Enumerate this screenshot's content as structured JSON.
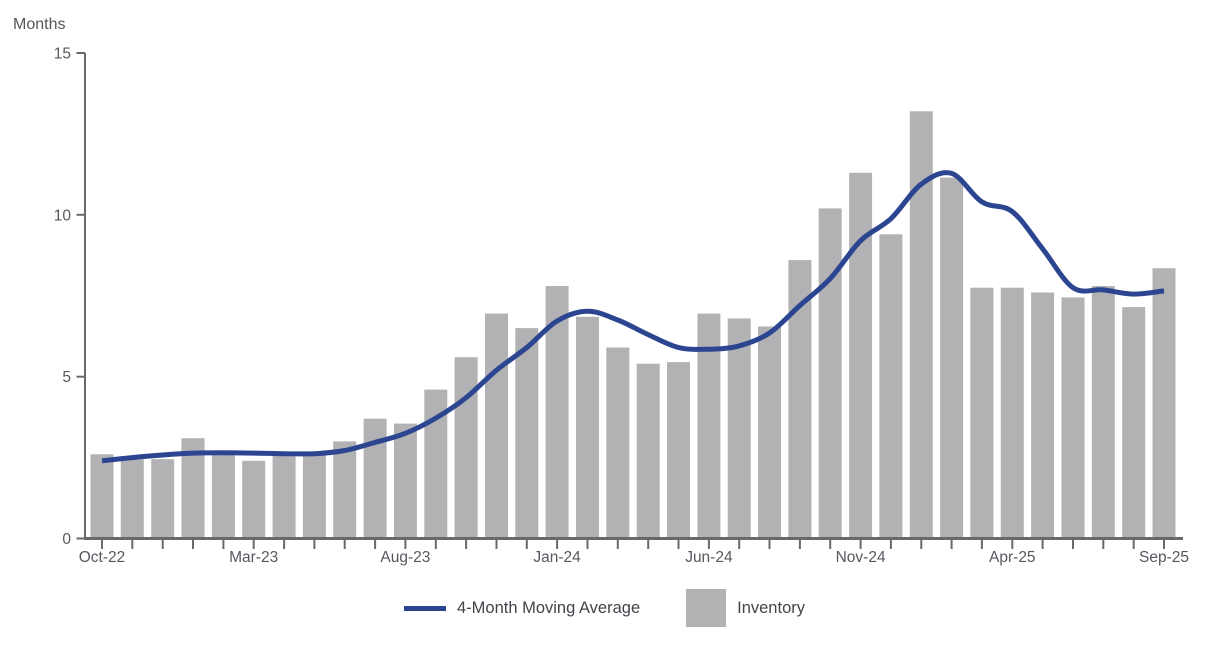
{
  "page": {
    "background": "#FFFFFF"
  },
  "colors": {
    "line_blue": "#2B4590",
    "bar_gray": "#B2B2B4",
    "axis_gray": "#69696C",
    "tick_label_gray": "#57575F",
    "legend_text_gray": "#43434B",
    "axis_title_gray": "#55555E"
  },
  "chart_data": {
    "type": "bar",
    "subtype": "bar-line-combo",
    "ylabel": "Months",
    "ylim": [
      0,
      15
    ],
    "yticks": [
      0,
      5,
      10,
      15
    ],
    "grid": "off",
    "categories": [
      "Oct-22",
      "Nov-22",
      "Dec-22",
      "Jan-23",
      "Feb-23",
      "Mar-23",
      "Apr-23",
      "May-23",
      "Jun-23",
      "Jul-23",
      "Aug-23",
      "Sep-23",
      "Oct-23",
      "Nov-23",
      "Dec-23",
      "Jan-24",
      "Feb-24",
      "Mar-24",
      "Apr-24",
      "May-24",
      "Jun-24",
      "Jul-24",
      "Aug-24",
      "Sep-24",
      "Oct-24",
      "Nov-24",
      "Dec-24",
      "Jan-25",
      "Feb-25",
      "Mar-25",
      "Apr-25",
      "May-25",
      "Jun-25",
      "Jul-25",
      "Aug-25",
      "Sep-25"
    ],
    "xtick_labels": [
      "Oct-22",
      "Mar-23",
      "Aug-23",
      "Jan-24",
      "Jun-24",
      "Nov-24",
      "Apr-25",
      "Sep-25"
    ],
    "xtick_label_indices": [
      0,
      5,
      10,
      15,
      20,
      25,
      30,
      35
    ],
    "series": [
      {
        "name": "Inventory",
        "type": "bar",
        "color": "#B2B2B4",
        "values": [
          2.6,
          2.45,
          2.45,
          3.1,
          2.6,
          2.4,
          2.6,
          2.6,
          3.0,
          3.7,
          3.55,
          4.6,
          5.6,
          6.95,
          6.5,
          7.8,
          6.85,
          5.9,
          5.4,
          5.45,
          6.95,
          6.8,
          6.55,
          8.6,
          10.2,
          11.3,
          9.4,
          13.2,
          11.15,
          7.75,
          7.75,
          7.6,
          7.45,
          7.8,
          7.15,
          8.35
        ]
      },
      {
        "name": "4-Month Moving Average",
        "type": "line",
        "color": "#2B4590",
        "values": [
          2.4,
          2.5,
          2.58,
          2.64,
          2.65,
          2.64,
          2.62,
          2.62,
          2.72,
          2.97,
          3.25,
          3.72,
          4.35,
          5.2,
          5.9,
          6.72,
          7.02,
          6.75,
          6.3,
          5.9,
          5.85,
          5.95,
          6.35,
          7.2,
          8.03,
          9.2,
          9.88,
          10.95,
          11.28,
          10.4,
          10.1,
          8.95,
          7.75,
          7.68,
          7.55,
          7.65
        ]
      }
    ],
    "legend": {
      "position": "bottom",
      "line_label": "4-Month Moving Average",
      "bar_label": "Inventory"
    }
  }
}
